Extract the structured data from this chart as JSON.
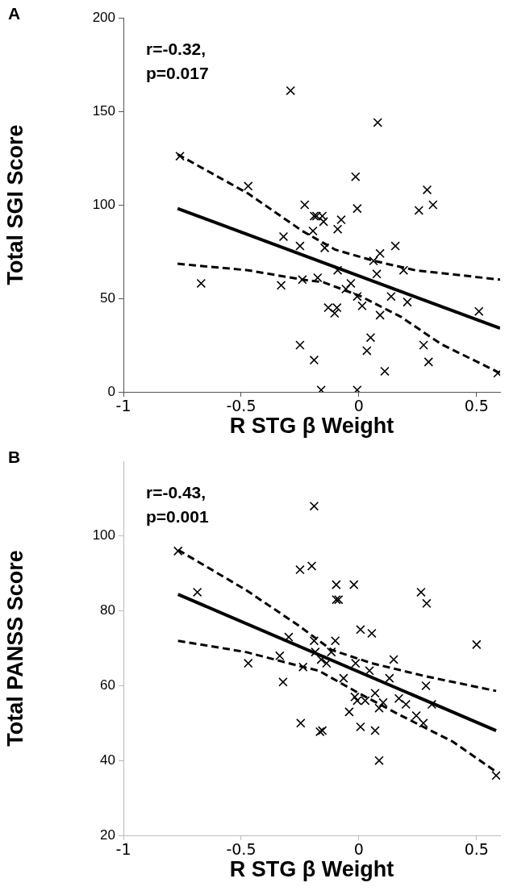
{
  "chart_data": [
    {
      "type": "scatter",
      "title": "A",
      "xlabel": "R STG β Weight",
      "ylabel": "Total SGI Score",
      "annotations": [
        "r=-0.32,\np=0.017"
      ],
      "xlim": [
        -1,
        0.6
      ],
      "xticks": [
        -1,
        -0.5,
        0,
        0.5
      ],
      "ylim": [
        0,
        200
      ],
      "yticks": [
        0,
        50,
        100,
        150,
        200
      ],
      "grid": false,
      "legend": false,
      "series": [
        {
          "color": "#000000",
          "marker": "cross",
          "x": [
            -0.76,
            -0.67,
            -0.47,
            -0.32,
            -0.33,
            -0.29,
            -0.23,
            -0.24,
            -0.25,
            -0.25,
            -0.19,
            -0.18,
            -0.155,
            -0.15,
            -0.195,
            -0.075,
            -0.09,
            -0.014,
            -0.007,
            0.08,
            0.29,
            0.315,
            0.255,
            -0.145,
            0.155,
            0.09,
            0.062,
            0.19,
            -0.09,
            0.076,
            -0.175,
            -0.034,
            -0.055,
            -0.007,
            0.137,
            0.206,
            0.014,
            -0.13,
            -0.093,
            -0.103,
            0.09,
            0.51,
            0.05,
            0.034,
            0.275,
            0.296,
            -0.19,
            0.11,
            -0.16,
            -0.007,
            0.59
          ],
          "values": [
            126,
            58,
            110,
            83,
            57,
            161,
            100,
            60,
            78,
            25,
            94,
            94,
            94,
            91,
            86,
            92,
            87,
            115,
            98,
            144,
            108,
            100,
            97,
            77,
            78,
            74,
            70,
            65,
            65,
            63,
            61,
            58,
            55,
            51,
            51,
            48,
            46,
            45,
            45,
            42,
            41,
            43,
            29,
            22,
            25,
            16,
            17,
            11,
            1,
            1,
            10
          ]
        },
        {
          "type": "line",
          "color": "#000000",
          "line_style": "solid",
          "x": [
            -0.77,
            0.6
          ],
          "values": [
            98,
            34
          ]
        },
        {
          "type": "line",
          "color": "#000000",
          "line_style": "dashed",
          "x": [
            -0.77,
            -0.47,
            -0.24,
            -0.1,
            0.065,
            0.24,
            0.6
          ],
          "values": [
            127,
            106,
            86,
            76,
            70,
            65,
            60
          ]
        },
        {
          "type": "line",
          "color": "#000000",
          "line_style": "dashed",
          "x": [
            -0.77,
            -0.47,
            -0.24,
            -0.15,
            0.01,
            0.18,
            0.35,
            0.6
          ],
          "values": [
            68.5,
            65,
            60,
            58.6,
            51,
            40,
            25.5,
            10
          ]
        }
      ]
    },
    {
      "type": "scatter",
      "title": "B",
      "xlabel": "R STG β Weight",
      "ylabel": "Total PANSS Score",
      "annotations": [
        "r=-0.43,\np=0.001"
      ],
      "xlim": [
        -1,
        0.6
      ],
      "xticks": [
        -1,
        -0.5,
        0,
        0.5
      ],
      "ylim": [
        20,
        120
      ],
      "yticks": [
        20,
        40,
        60,
        80,
        100
      ],
      "grid": false,
      "legend": false,
      "series": [
        {
          "color": "#000000",
          "marker": "cross",
          "x": [
            -0.768,
            -0.686,
            -0.47,
            -0.336,
            -0.322,
            -0.298,
            -0.25,
            -0.237,
            -0.247,
            -0.19,
            -0.2,
            -0.096,
            -0.021,
            -0.096,
            -0.086,
            0.264,
            0.288,
            0.007,
            0.055,
            0.5,
            -0.19,
            -0.1,
            -0.185,
            -0.117,
            -0.16,
            -0.137,
            -0.014,
            0.148,
            0.045,
            -0.065,
            0.13,
            0.285,
            -0.017,
            -0.007,
            0.027,
            0.069,
            0.103,
            0.17,
            0.2,
            0.086,
            0.31,
            -0.041,
            0.244,
            0.274,
            -0.165,
            -0.155,
            0.007,
            0.069,
            0.086,
            0.583
          ],
          "values": [
            96,
            85,
            66,
            68,
            61,
            73,
            91,
            65,
            50,
            108,
            92,
            87,
            87,
            83,
            83,
            85,
            82,
            75,
            74,
            71,
            72,
            72,
            69,
            69,
            67,
            66,
            66,
            67,
            64,
            62,
            62,
            60,
            57,
            56,
            56,
            58,
            55.5,
            56.6,
            55,
            54,
            55,
            53,
            52,
            50,
            47.7,
            48,
            49,
            48,
            40,
            36
          ]
        },
        {
          "type": "line",
          "color": "#000000",
          "line_style": "solid",
          "x": [
            -0.768,
            0.583
          ],
          "values": [
            84.4,
            48
          ]
        },
        {
          "type": "line",
          "color": "#000000",
          "line_style": "dashed",
          "x": [
            -0.768,
            -0.48,
            -0.254,
            -0.117,
            0.055,
            0.285,
            0.583
          ],
          "values": [
            96.3,
            85.6,
            76,
            69.6,
            66,
            62.5,
            58.6
          ]
        },
        {
          "type": "line",
          "color": "#000000",
          "line_style": "dashed",
          "x": [
            -0.768,
            -0.48,
            -0.254,
            -0.17,
            0,
            0.17,
            0.4,
            0.583
          ],
          "values": [
            72,
            69,
            65.3,
            64,
            58,
            52.3,
            45,
            37
          ]
        }
      ]
    }
  ]
}
